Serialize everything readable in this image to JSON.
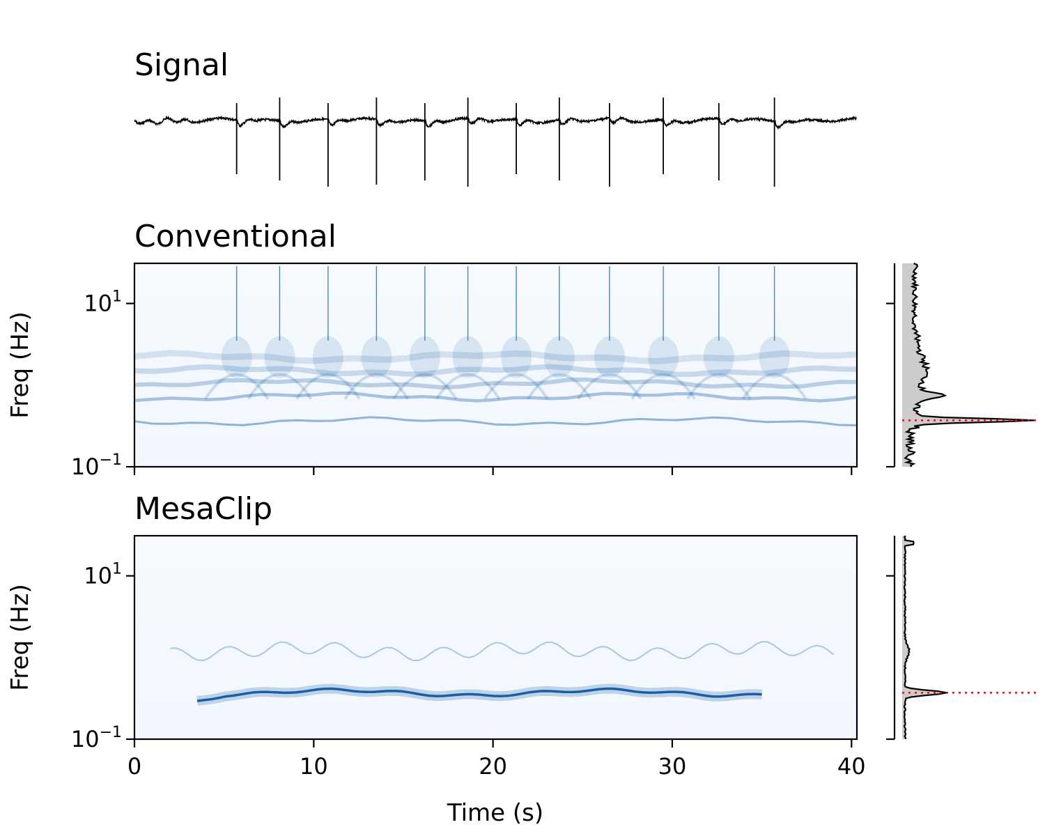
{
  "chart_data": [
    {
      "panel": "signal",
      "type": "line",
      "title": "Signal",
      "x_range": [
        0,
        40.3
      ],
      "beats_s": [
        5.7,
        8.1,
        10.8,
        13.5,
        16.2,
        18.6,
        21.3,
        23.7,
        26.5,
        29.5,
        32.6,
        35.7
      ]
    },
    {
      "panel": "conventional",
      "type": "heatmap",
      "title": "Conventional",
      "xlabel": "",
      "ylabel": "Freq (Hz)",
      "x_range": [
        0,
        40.3
      ],
      "y_scale": "log",
      "y_range_hz": [
        0.1,
        31
      ],
      "ytick_labels": [
        {
          "base": "10",
          "exp": "1",
          "value": 10
        },
        {
          "base": "10",
          "exp": "−1",
          "value": 0.1
        }
      ],
      "colormap": "Blues",
      "bands_hz": [
        {
          "freq": 0.36,
          "intensity": 0.75
        },
        {
          "freq": 0.72,
          "intensity": 0.6
        },
        {
          "freq": 1.05,
          "intensity": 0.45
        },
        {
          "freq": 1.5,
          "intensity": 0.35
        },
        {
          "freq": 2.2,
          "intensity": 0.25
        }
      ],
      "beat_ridges_s": [
        5.7,
        8.1,
        10.8,
        13.5,
        16.2,
        18.6,
        21.3,
        23.7,
        26.5,
        29.5,
        32.6,
        35.7
      ],
      "marginal_peak_hz": 0.37
    },
    {
      "panel": "mesaclip",
      "type": "heatmap",
      "title": "MesaClip",
      "xlabel": "Time (s)",
      "ylabel": "Freq (Hz)",
      "x_range": [
        0,
        40.3
      ],
      "xticks": [
        0,
        10,
        20,
        30,
        40
      ],
      "xtick_labels": [
        "0",
        "10",
        "20",
        "30",
        "40"
      ],
      "y_scale": "log",
      "y_range_hz": [
        0.1,
        31
      ],
      "ytick_labels": [
        {
          "base": "10",
          "exp": "1",
          "value": 10
        },
        {
          "base": "10",
          "exp": "−1",
          "value": 0.1
        }
      ],
      "colormap": "Blues",
      "ridge_hz": 0.37,
      "secondary_band_hz": 1.2,
      "marginal_peak_hz": 0.37
    }
  ],
  "colors": {
    "heat_low": "#f7fbff",
    "heat_high": "#08519c",
    "marker_line": "#ff0000",
    "marginal_fill": "#cccccc",
    "trace": "#000000"
  }
}
